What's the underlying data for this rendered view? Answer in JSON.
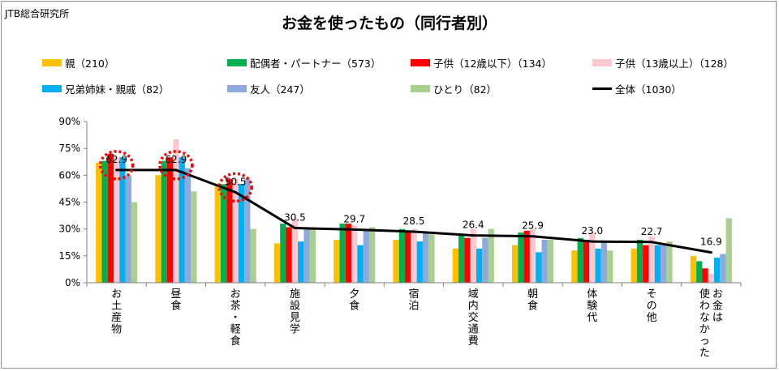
{
  "header": {
    "source": "JTB総合研究所",
    "title": "お金を使ったもの（同行者別）"
  },
  "chart_data": {
    "type": "bar",
    "categories": [
      "お土産物",
      "昼食",
      "お茶・軽食",
      "施設見学",
      "夕食",
      "宿泊",
      "域内交通費",
      "朝食",
      "体験代",
      "その他",
      "お金は使わなかった"
    ],
    "category_lines": [
      [
        "お土産物"
      ],
      [
        "昼食"
      ],
      [
        "お茶・軽食"
      ],
      [
        "施設見学"
      ],
      [
        "夕食"
      ],
      [
        "宿泊"
      ],
      [
        "域内交通費"
      ],
      [
        "朝食"
      ],
      [
        "体験代"
      ],
      [
        "その他"
      ],
      [
        "使わなかった",
        "お金は"
      ]
    ],
    "series": [
      {
        "name": "親（210）",
        "color": "#ffc000",
        "values": [
          67,
          60,
          55,
          22,
          24,
          24,
          19,
          21,
          18,
          19,
          15
        ]
      },
      {
        "name": "配偶者・パートナー（573）",
        "color": "#00b050",
        "values": [
          68,
          68,
          55,
          33,
          33,
          30,
          27,
          28,
          25,
          24,
          12
        ]
      },
      {
        "name": "子供（12歳以下）（134）",
        "color": "#ff0000",
        "values": [
          72,
          70,
          58,
          31,
          33,
          29,
          25,
          29,
          23,
          21,
          8
        ]
      },
      {
        "name": "子供（13歳以上）（128）",
        "color": "#ffc7ce",
        "values": [
          70,
          80,
          58,
          36,
          32,
          30,
          30,
          30,
          28,
          26,
          5
        ]
      },
      {
        "name": "兄弟姉妹・親戚（82）",
        "color": "#00b0f0",
        "values": [
          70,
          70,
          55,
          23,
          21,
          23,
          19,
          17,
          19,
          21,
          14
        ]
      },
      {
        "name": "友人（247）",
        "color": "#8ea9db",
        "values": [
          60,
          64,
          58,
          31,
          30,
          28,
          25,
          24,
          23,
          21,
          16
        ]
      },
      {
        "name": "ひとり（82）",
        "color": "#a9d08e",
        "values": [
          45,
          51,
          30,
          30,
          31,
          27,
          30,
          24,
          18,
          23,
          36
        ]
      }
    ],
    "line": {
      "name": "全体（1030）",
      "color": "#000000",
      "values": [
        62.9,
        62.9,
        50.5,
        30.5,
        29.7,
        28.5,
        26.4,
        25.9,
        23.0,
        22.7,
        16.9
      ],
      "labels": [
        "62.9",
        "62.9",
        "50.5",
        "30.5",
        "29.7",
        "28.5",
        "26.4",
        "25.9",
        "23.0",
        "22.7",
        "16.9"
      ]
    },
    "highlighted_categories": [
      "お土産物",
      "昼食",
      "お茶・軽食"
    ],
    "highlight_color": "#ff0000",
    "ylim": [
      0,
      90
    ],
    "yticks": [
      "0%",
      "15%",
      "30%",
      "45%",
      "60%",
      "75%",
      "90%"
    ],
    "ytick_values": [
      0,
      15,
      30,
      45,
      60,
      75,
      90
    ],
    "grid": false,
    "legend_position": "top"
  }
}
